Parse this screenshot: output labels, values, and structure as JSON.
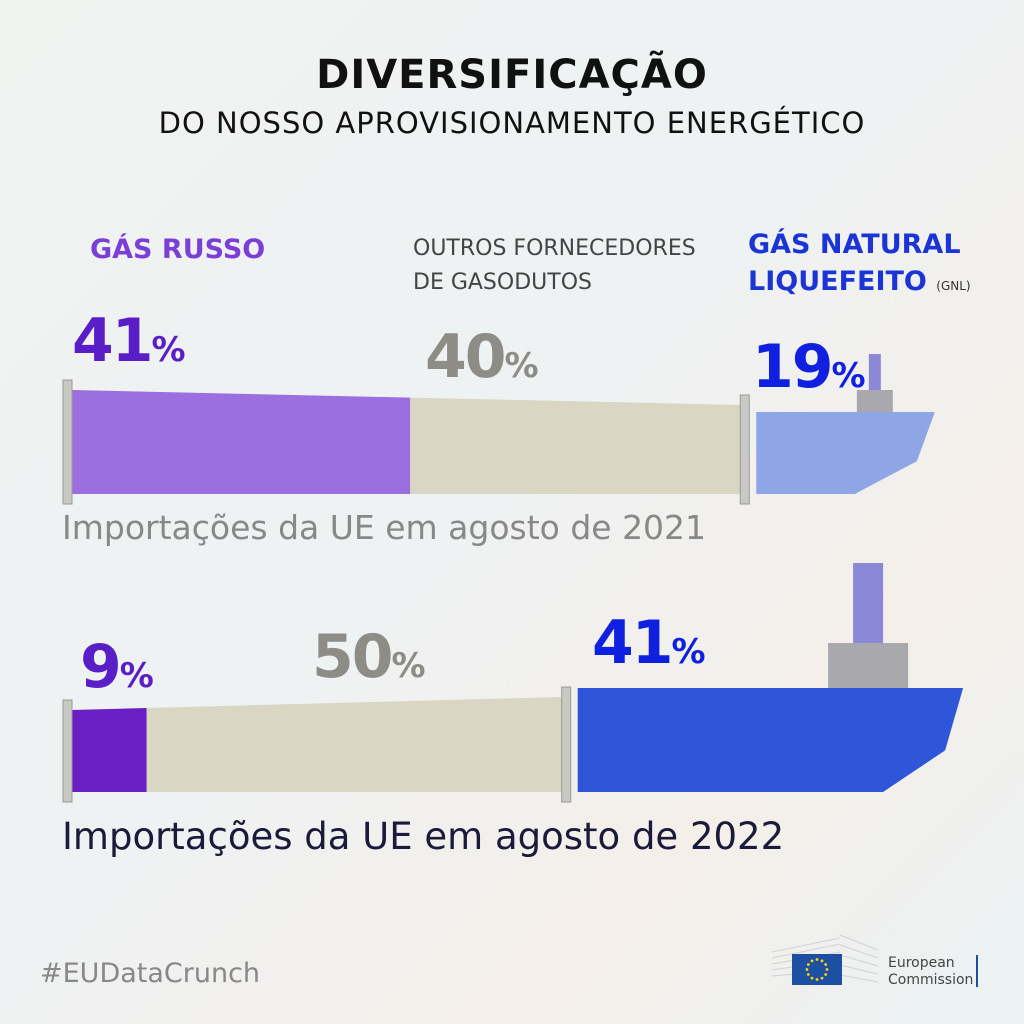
{
  "header": {
    "title": "DIVERSIFICAÇÃO",
    "subtitle": "DO NOSSO APROVISIONAMENTO ENERGÉTICO"
  },
  "legend": {
    "russian": "GÁS RUSSO",
    "other_line1": "OUTROS FORNECEDORES",
    "other_line2": "DE GASODUTOS",
    "lng_line1": "GÁS NATURAL",
    "lng_line2": "LIQUEFEITO",
    "lng_abbr": "(GNL)"
  },
  "colors": {
    "russian_2021": "#9b6fe0",
    "russian_2022": "#6a1fc4",
    "other": "#d9d6c4",
    "lng_2021": "#8fa6e6",
    "lng_2022": "#2f55d9",
    "russian_text": "#5a1ec8",
    "other_text": "#8e8c86",
    "lng_text": "#1020e0"
  },
  "chart_data": {
    "type": "bar",
    "stacked": true,
    "categories": [
      "Importações da UE em agosto de 2021",
      "Importações da UE em agosto de 2022"
    ],
    "series": [
      {
        "name": "GÁS RUSSO",
        "values": [
          41,
          9
        ]
      },
      {
        "name": "OUTROS FORNECEDORES DE GASODUTOS",
        "values": [
          40,
          50
        ]
      },
      {
        "name": "GÁS NATURAL LIQUEFEITO (GNL)",
        "values": [
          19,
          41
        ]
      }
    ],
    "unit": "%",
    "labels": {
      "y2021": {
        "russian": "41",
        "other": "40",
        "lng": "19"
      },
      "y2022": {
        "russian": "9",
        "other": "50",
        "lng": "41"
      },
      "percent": "%"
    }
  },
  "footer": {
    "hashtag": "#EUDataCrunch",
    "logo_line1": "European",
    "logo_line2": "Commission"
  }
}
